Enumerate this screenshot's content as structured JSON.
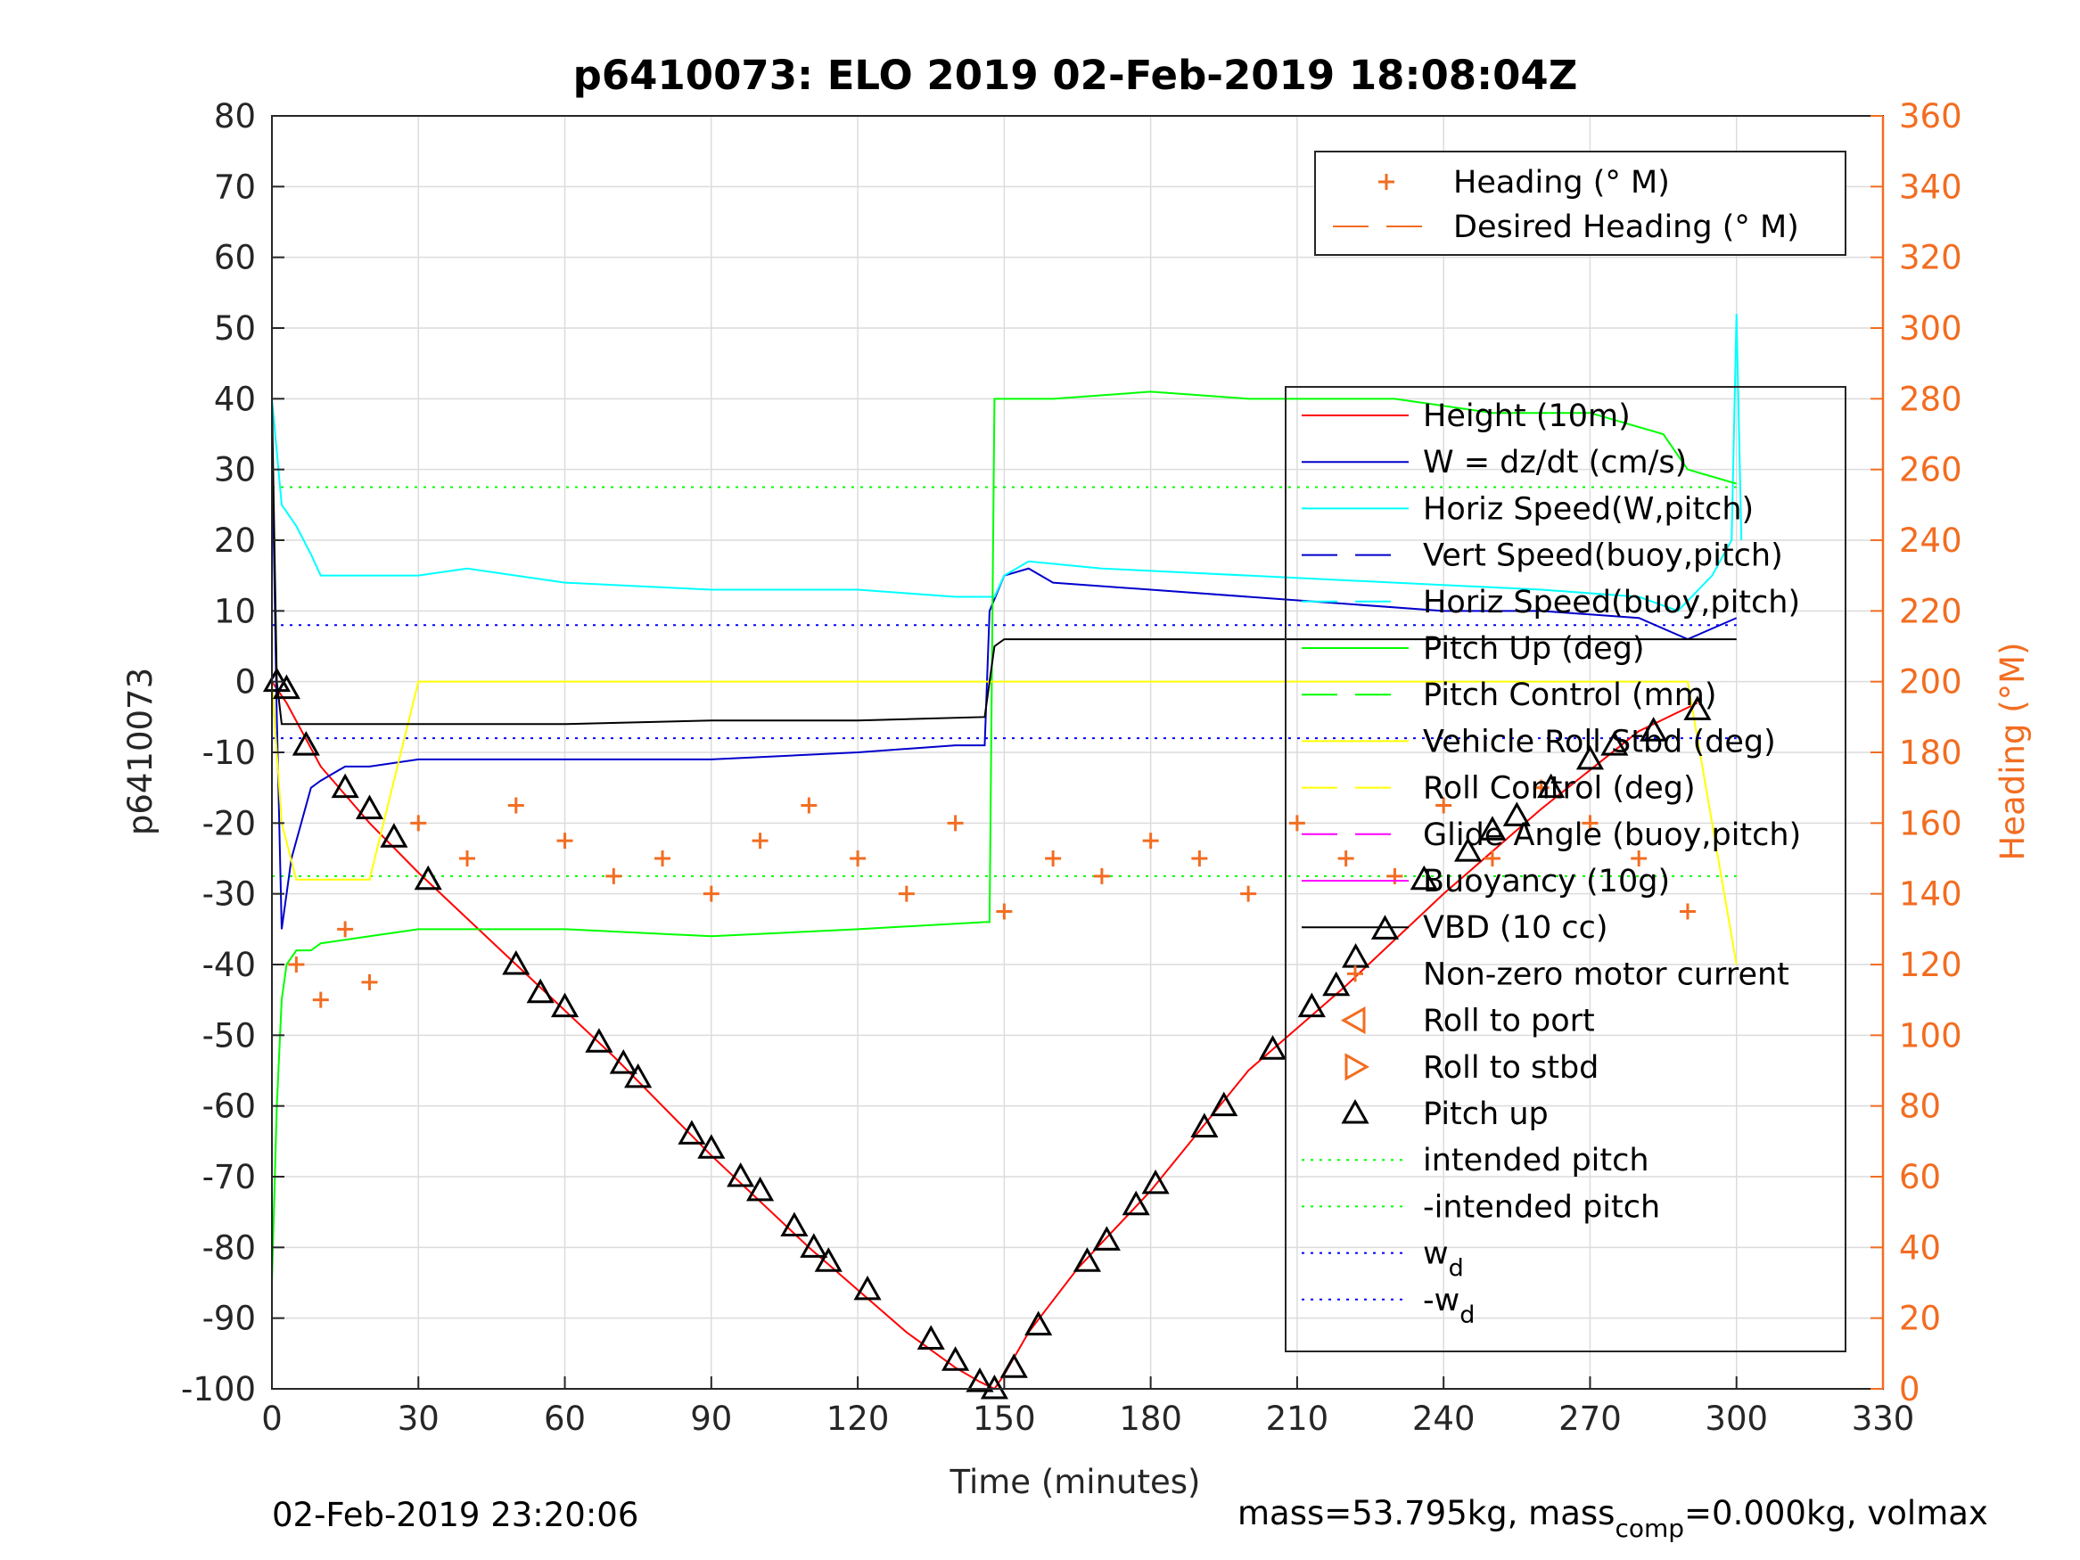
{
  "title": "p6410073: ELO 2019 02-Feb-2019 18:08:04Z",
  "footer": {
    "timestamp": "02-Feb-2019 23:20:06",
    "mass_text": "mass=53.795kg, mass",
    "mass_sub": "comp",
    "mass_tail": "=0.000kg, volmax"
  },
  "colors": {
    "heading": "#f26d21",
    "height": "#ff0000",
    "w": "#0000cc",
    "horiz_speed": "#00ffff",
    "pitch": "#00ff00",
    "roll": "#ffff00",
    "buoyancy": "#ff00ff",
    "vbd": "#000000"
  },
  "legend_heading": [
    {
      "label": "Heading (° M)",
      "style": "plus",
      "color": "#f26d21"
    },
    {
      "label": "Desired Heading (° M)",
      "style": "dash",
      "color": "#f26d21"
    }
  ],
  "legend_main": [
    {
      "label": "Height (10m)",
      "style": "solid",
      "color": "#ff0000"
    },
    {
      "label": "W = dz/dt (cm/s)",
      "style": "solid",
      "color": "#0000cc"
    },
    {
      "label": "Horiz Speed(W,pitch)",
      "style": "solid",
      "color": "#00ffff"
    },
    {
      "label": "Vert Speed(buoy,pitch)",
      "style": "dash",
      "color": "#0000cc"
    },
    {
      "label": "Horiz Speed(buoy,pitch)",
      "style": "dash",
      "color": "#00ffff"
    },
    {
      "label": "Pitch Up (deg)",
      "style": "solid",
      "color": "#00ff00"
    },
    {
      "label": "Pitch Control (mm)",
      "style": "dash",
      "color": "#00ff00"
    },
    {
      "label": "Vehicle Roll Stbd (deg)",
      "style": "solid",
      "color": "#ffff00"
    },
    {
      "label": "Roll Control (deg)",
      "style": "dash",
      "color": "#ffff00"
    },
    {
      "label": "Glide Angle (buoy,pitch)",
      "style": "dash",
      "color": "#ff00ff"
    },
    {
      "label": "Buoyancy (10g)",
      "style": "solid",
      "color": "#ff00ff"
    },
    {
      "label": "VBD (10 cc)",
      "style": "solid",
      "color": "#000000"
    },
    {
      "label": "Non-zero motor current",
      "style": "plus",
      "color": "#f26d21"
    },
    {
      "label": "Roll to port",
      "style": "tri-left",
      "color": "#000000"
    },
    {
      "label": "Roll to stbd",
      "style": "tri-right",
      "color": "#000000"
    },
    {
      "label": "Pitch up",
      "style": "tri-up",
      "color": "#000000"
    },
    {
      "label": "intended pitch",
      "style": "dot",
      "color": "#00ff00"
    },
    {
      "label": "-intended pitch",
      "style": "dot",
      "color": "#00ff00"
    },
    {
      "label": "w",
      "sub": "d",
      "style": "dot",
      "color": "#0000ff"
    },
    {
      "label": "-w",
      "sub": "d",
      "style": "dot",
      "color": "#0000ff"
    }
  ],
  "chart_data": {
    "type": "line",
    "title": "p6410073: ELO 2019 02-Feb-2019 18:08:04Z",
    "xlabel": "Time (minutes)",
    "ylabel": "p6410073",
    "y2label": "Heading (°M)",
    "xlim": [
      0,
      330
    ],
    "ylim": [
      -100,
      80
    ],
    "y2lim": [
      0,
      360
    ],
    "xticks": [
      "0",
      "30",
      "60",
      "90",
      "120",
      "150",
      "180",
      "210",
      "240",
      "270",
      "300",
      "330"
    ],
    "yticks": [
      "80",
      "70",
      "60",
      "50",
      "40",
      "30",
      "20",
      "10",
      "0",
      "-10",
      "-20",
      "-30",
      "-40",
      "-50",
      "-60",
      "-70",
      "-80",
      "-90",
      "-100"
    ],
    "y2ticks": [
      "360",
      "340",
      "320",
      "300",
      "280",
      "260",
      "240",
      "220",
      "200",
      "180",
      "160",
      "140",
      "120",
      "100",
      "80",
      "60",
      "40",
      "20",
      "0"
    ],
    "grid": true,
    "legend_placement": [
      "top-right",
      "right"
    ],
    "reference_lines": {
      "intended_pitch": 27.5,
      "neg_intended_pitch": -27.5,
      "w_d": 8,
      "neg_w_d": -8
    },
    "series": [
      {
        "name": "Height (10m)",
        "x": [
          0,
          3,
          10,
          20,
          30,
          50,
          70,
          90,
          110,
          130,
          140,
          145,
          148,
          150,
          155,
          165,
          180,
          200,
          220,
          240,
          260,
          280,
          292
        ],
        "y": [
          0,
          -3,
          -12,
          -20,
          -27,
          -40,
          -53,
          -67,
          -80,
          -92,
          -97,
          -99,
          -100,
          -98,
          -92,
          -83,
          -72,
          -55,
          -43,
          -30,
          -18,
          -7,
          -3
        ]
      },
      {
        "name": "W = dz/dt (cm/s)",
        "x": [
          0,
          1,
          2,
          4,
          6,
          8,
          10,
          15,
          20,
          30,
          60,
          90,
          120,
          140,
          146,
          147,
          150,
          155,
          160,
          180,
          200,
          220,
          240,
          260,
          280,
          290,
          300
        ],
        "y": [
          35,
          -5,
          -35,
          -25,
          -20,
          -15,
          -14,
          -12,
          -12,
          -11,
          -11,
          -11,
          -10,
          -9,
          -9,
          10,
          15,
          16,
          14,
          13,
          12,
          11,
          10,
          10,
          9,
          6,
          9
        ]
      },
      {
        "name": "Horiz Speed(W,pitch)",
        "x": [
          0,
          2,
          5,
          8,
          10,
          20,
          30,
          40,
          60,
          90,
          120,
          140,
          146,
          148,
          150,
          155,
          170,
          200,
          230,
          260,
          280,
          288,
          295,
          299,
          300,
          301
        ],
        "y": [
          40,
          25,
          22,
          18,
          15,
          15,
          15,
          16,
          14,
          13,
          13,
          12,
          12,
          12,
          15,
          17,
          16,
          15,
          14,
          13,
          12,
          10,
          15,
          20,
          52,
          20
        ]
      },
      {
        "name": "Pitch Up (deg)",
        "x": [
          0,
          1,
          2,
          3,
          5,
          8,
          10,
          20,
          30,
          60,
          90,
          120,
          146,
          147,
          148,
          150,
          160,
          180,
          200,
          230,
          250,
          270,
          285,
          290,
          300
        ],
        "y": [
          -85,
          -60,
          -45,
          -40,
          -38,
          -38,
          -37,
          -36,
          -35,
          -35,
          -36,
          -35,
          -34,
          -34,
          40,
          40,
          40,
          41,
          40,
          40,
          38,
          38,
          35,
          30,
          28
        ]
      },
      {
        "name": "Vehicle Roll Stbd (deg)",
        "x": [
          0,
          2,
          5,
          10,
          20,
          30,
          60,
          90,
          120,
          146,
          148,
          150,
          180,
          210,
          240,
          270,
          290,
          300
        ],
        "y": [
          0,
          -20,
          -28,
          -28,
          -28,
          0,
          0,
          0,
          0,
          0,
          0,
          0,
          0,
          0,
          0,
          0,
          0,
          -40
        ]
      },
      {
        "name": "VBD (10 cc)",
        "x": [
          0,
          1,
          2,
          3,
          10,
          30,
          60,
          90,
          120,
          146,
          148,
          150,
          180,
          210,
          240,
          270,
          290,
          300
        ],
        "y": [
          40,
          0,
          -6,
          -6,
          -6,
          -6,
          -6,
          -5.5,
          -5.5,
          -5,
          5,
          6,
          6,
          6,
          6,
          6,
          6,
          6
        ]
      }
    ],
    "heading_points": {
      "name": "Heading (° M)",
      "x": [
        5,
        10,
        15,
        20,
        30,
        40,
        50,
        60,
        70,
        80,
        90,
        100,
        110,
        120,
        130,
        140,
        150,
        160,
        170,
        180,
        190,
        200,
        210,
        220,
        230,
        240,
        250,
        260,
        270,
        280,
        290
      ],
      "y": [
        120,
        110,
        130,
        115,
        160,
        150,
        165,
        155,
        145,
        150,
        140,
        155,
        165,
        150,
        140,
        160,
        135,
        150,
        145,
        155,
        150,
        140,
        160,
        150,
        145,
        165,
        150,
        170,
        160,
        150,
        135
      ]
    },
    "pitch_up_markers": {
      "name": "Pitch up",
      "x": [
        1,
        3,
        7,
        15,
        20,
        25,
        32,
        50,
        55,
        60,
        67,
        72,
        75,
        86,
        90,
        96,
        100,
        107,
        111,
        114,
        122,
        135,
        140,
        145,
        148,
        152,
        157,
        167,
        171,
        177,
        181,
        191,
        195,
        205,
        213,
        218,
        222,
        228,
        236,
        245,
        250,
        255,
        262,
        270,
        275,
        283,
        292
      ],
      "y": [
        0,
        -1,
        -9,
        -15,
        -18,
        -22,
        -28,
        -40,
        -44,
        -46,
        -51,
        -54,
        -56,
        -64,
        -66,
        -70,
        -72,
        -77,
        -80,
        -82,
        -86,
        -93,
        -96,
        -99,
        -100,
        -97,
        -91,
        -82,
        -79,
        -74,
        -71,
        -63,
        -60,
        -52,
        -46,
        -43,
        -39,
        -35,
        -28,
        -24,
        -21,
        -19,
        -15,
        -11,
        -9,
        -7,
        -4
      ]
    }
  }
}
